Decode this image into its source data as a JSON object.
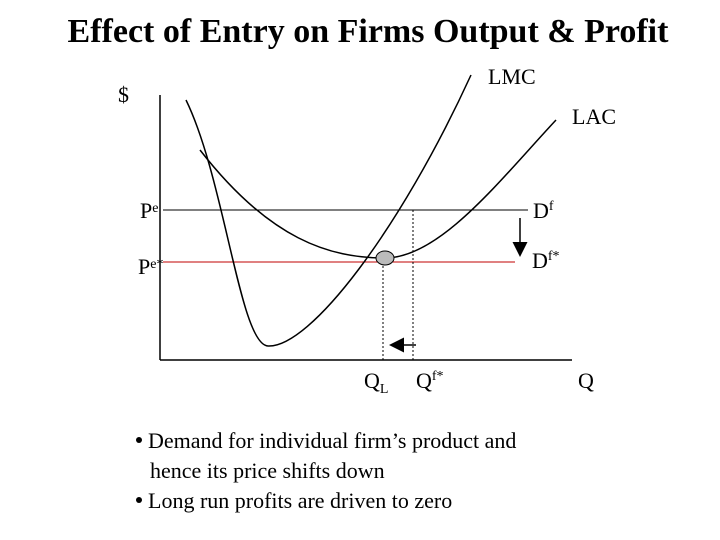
{
  "title": "Effect of Entry on Firms Output & Profit",
  "axis_labels": {
    "y": "$",
    "x": "Q"
  },
  "curves": {
    "lmc": "LMC",
    "lac": "LAC"
  },
  "price_labels": [
    {
      "base": "P",
      "sup": "e"
    },
    {
      "base": "P",
      "sup": "e*"
    }
  ],
  "demand_labels": [
    {
      "base": "D",
      "sup": "f"
    },
    {
      "base": "D",
      "sup": "f*"
    }
  ],
  "quantity_labels": [
    {
      "base": "Q",
      "sub": "L"
    },
    {
      "base": "Q",
      "sup": "f*"
    }
  ],
  "bullets": [
    [
      "Demand for individual firm’s product and",
      "hence its price shifts down"
    ],
    [
      "Long run profits are driven to zero"
    ]
  ]
}
